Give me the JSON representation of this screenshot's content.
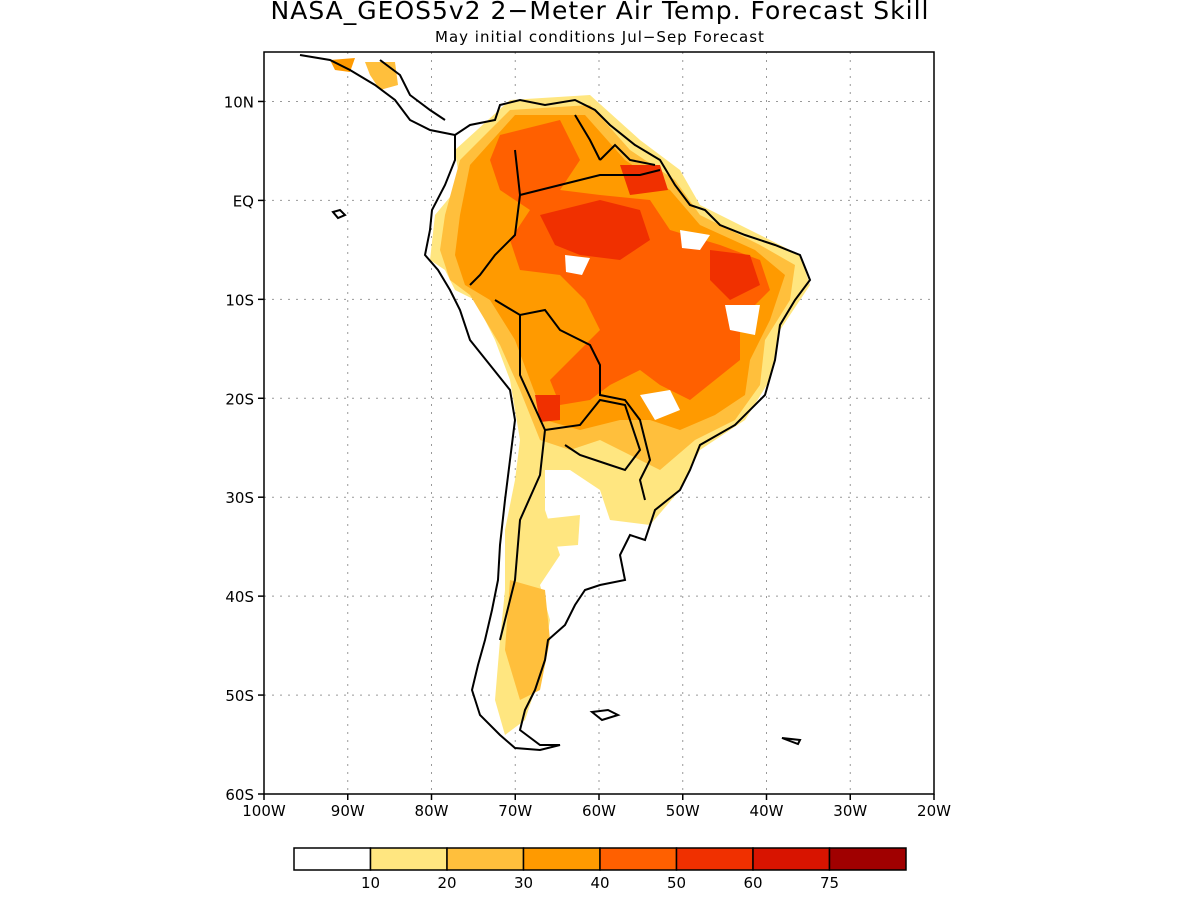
{
  "title": "NASA_GEOS5v2 2−Meter Air Temp. Forecast Skill",
  "subtitle": "May initial conditions  Jul−Sep Forecast",
  "map": {
    "region": "South America",
    "lat_range": [
      -60,
      15
    ],
    "lon_range": [
      -100,
      -20
    ],
    "lat_ticks": [
      "10N",
      "EQ",
      "10S",
      "20S",
      "30S",
      "40S",
      "50S",
      "60S"
    ],
    "lon_ticks": [
      "100W",
      "90W",
      "80W",
      "70W",
      "60W",
      "50W",
      "40W",
      "30W",
      "20W"
    ],
    "grid": "dotted"
  },
  "legend": {
    "levels": [
      "10",
      "20",
      "30",
      "40",
      "50",
      "60",
      "75"
    ],
    "colors": [
      "#ffffff",
      "#ffe680",
      "#ffbf3c",
      "#ff9a00",
      "#ff6000",
      "#f03000",
      "#d81400",
      "#a00000"
    ]
  }
}
